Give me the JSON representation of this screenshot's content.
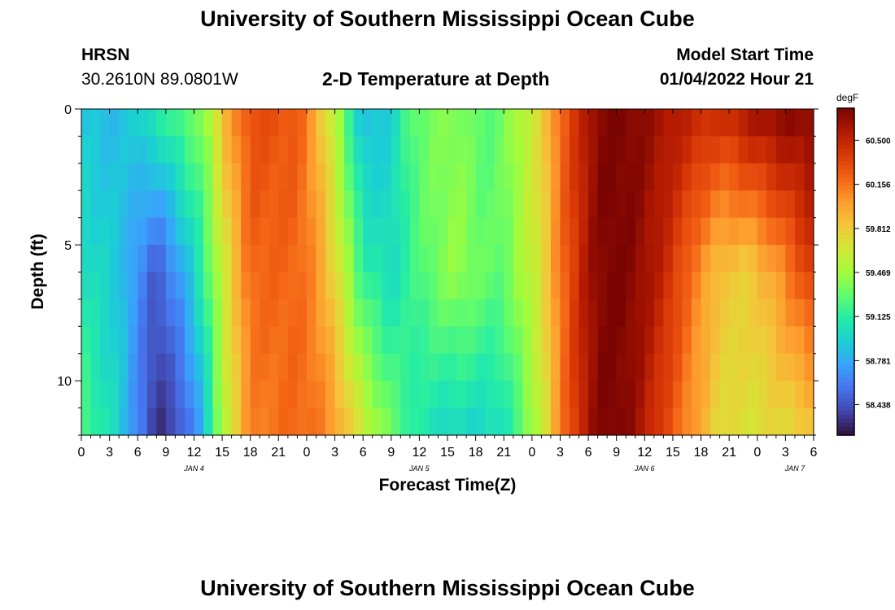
{
  "header": {
    "title": "University of Southern Mississippi Ocean Cube",
    "station": "HRSN",
    "coords": "30.2610N  89.0801W",
    "subtitle": "2-D Temperature at Depth",
    "model_label": "Model Start Time",
    "model_time": "01/04/2022 Hour 21"
  },
  "footer": {
    "title": "University of Southern Mississippi Ocean Cube"
  },
  "colors": {
    "colormap": [
      "#30123b",
      "#4145ab",
      "#4675ed",
      "#39a2fc",
      "#1bcfd4",
      "#24eca6",
      "#61fc6c",
      "#a4fc3b",
      "#d1e834",
      "#f3c63a",
      "#fe9b2d",
      "#f36315",
      "#d93806",
      "#b11901",
      "#7a0402"
    ]
  },
  "chart_data": {
    "type": "heatmap",
    "title": "2-D Temperature at Depth",
    "xlabel": "Forecast Time(Z)",
    "ylabel": "Depth (ft)",
    "x_tick_labels": [
      "0",
      "3",
      "6",
      "9",
      "12",
      "15",
      "18",
      "21",
      "0",
      "3",
      "6",
      "9",
      "12",
      "15",
      "18",
      "21",
      "0",
      "3",
      "6",
      "9",
      "12",
      "15",
      "18",
      "21",
      "0",
      "3",
      "6"
    ],
    "x_range_hours": [
      0,
      78
    ],
    "x_step_hours": 1,
    "day_labels": [
      {
        "label": "JAN 4",
        "hour": 12
      },
      {
        "label": "JAN 5",
        "hour": 36
      },
      {
        "label": "JAN 6",
        "hour": 60
      },
      {
        "label": "JAN 7",
        "hour": 76
      }
    ],
    "y_ticks": [
      0,
      5,
      10
    ],
    "y_tick_labels": [
      "0",
      "5",
      "10"
    ],
    "y_range_ft": [
      0,
      12
    ],
    "depth_levels_ft": [
      0.5,
      1.5,
      2.5,
      3.5,
      4.5,
      5.5,
      6.5,
      7.5,
      8.5,
      9.5,
      10.5,
      11.5
    ],
    "colorbar": {
      "unit": "degF",
      "range": [
        58.2,
        60.75
      ],
      "ticks": [
        "60.500",
        "60.156",
        "59.812",
        "59.469",
        "59.125",
        "58.781",
        "58.438"
      ]
    },
    "anchor_hours": [
      0,
      4,
      8,
      11,
      13,
      15,
      18,
      23,
      25,
      27,
      30,
      33,
      35,
      37,
      40,
      43,
      45,
      47,
      49,
      51,
      53,
      54,
      55,
      56,
      57,
      59,
      62,
      66,
      68,
      71,
      74,
      78
    ],
    "anchors_surface": [
      58.9,
      58.85,
      59.05,
      59.25,
      59.35,
      59.85,
      60.3,
      60.25,
      59.95,
      59.55,
      58.85,
      58.95,
      59.25,
      59.35,
      59.4,
      59.25,
      59.35,
      59.55,
      59.75,
      60.2,
      60.45,
      60.6,
      60.7,
      60.75,
      60.75,
      60.72,
      60.6,
      60.45,
      60.4,
      60.55,
      60.65,
      60.7
    ],
    "anchors_mid": [
      59.05,
      58.9,
      58.45,
      58.8,
      59.15,
      59.6,
      60.2,
      60.2,
      60.05,
      59.75,
      59.15,
      59.0,
      59.15,
      59.3,
      59.45,
      59.3,
      59.3,
      59.5,
      59.7,
      60.15,
      60.45,
      60.6,
      60.7,
      60.75,
      60.75,
      60.7,
      60.5,
      60.05,
      59.85,
      59.8,
      60.0,
      60.4
    ],
    "anchors_bottom": [
      59.25,
      58.95,
      58.3,
      58.5,
      58.85,
      59.5,
      60.1,
      60.2,
      60.15,
      60.0,
      59.6,
      59.3,
      59.15,
      59.05,
      59.0,
      59.0,
      59.05,
      59.3,
      59.6,
      60.1,
      60.45,
      60.6,
      60.7,
      60.75,
      60.75,
      60.65,
      60.35,
      59.95,
      59.75,
      59.7,
      59.75,
      59.85
    ]
  }
}
